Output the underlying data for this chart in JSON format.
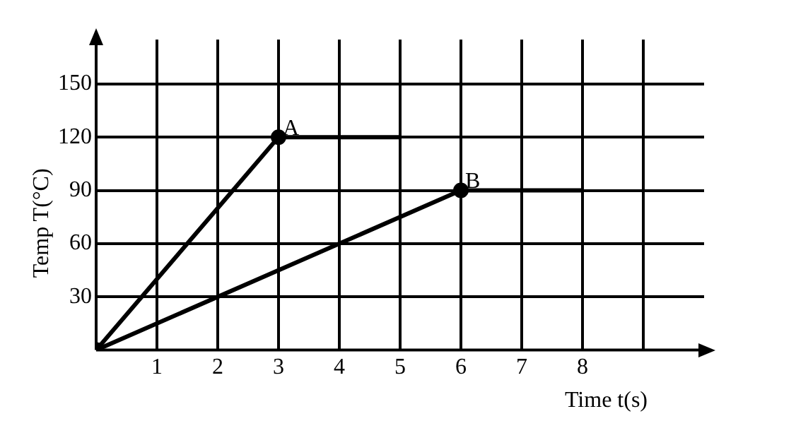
{
  "chart_data": {
    "type": "line",
    "xlabel": "Time t(s)",
    "ylabel": "Temp T(°C)",
    "series": [
      {
        "color": "#000000",
        "x": [
          0,
          3,
          5
        ],
        "values": [
          0,
          120,
          120
        ]
      },
      {
        "color": "#000000",
        "x": [
          0,
          6,
          8
        ],
        "values": [
          0,
          90,
          90
        ]
      }
    ],
    "xlim": [
      0,
      10
    ],
    "ylim": [
      0,
      175
    ],
    "xticks": [
      1,
      2,
      3,
      4,
      5,
      6,
      7,
      8,
      {
        "value": 9,
        "label": null
      }
    ],
    "yticks": [
      30,
      60,
      90,
      120,
      150
    ],
    "grid": true,
    "marker": "circle",
    "legend": false,
    "annotations": [
      {
        "text": "A",
        "x": 3,
        "y": 120
      },
      {
        "text": "B",
        "x": 6,
        "y": 90
      }
    ]
  }
}
